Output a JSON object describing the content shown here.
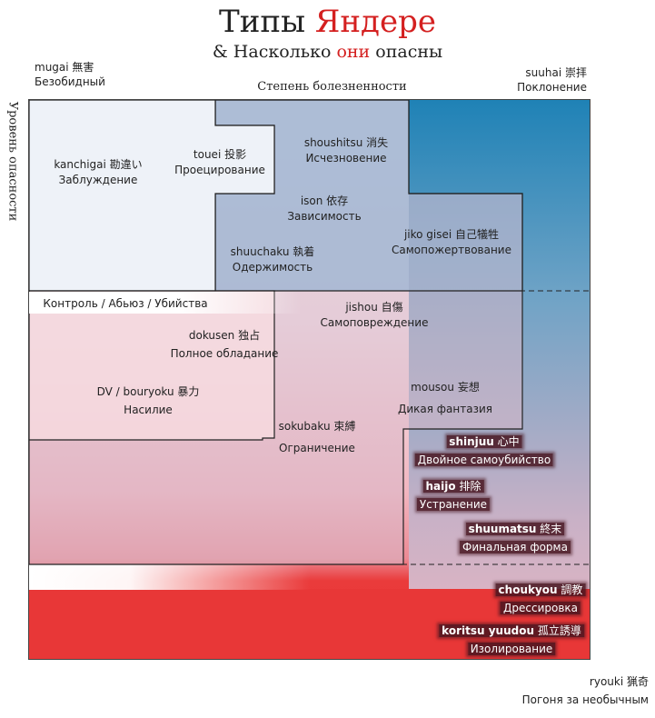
{
  "title": {
    "part1": "Типы",
    "part2": "Яндере"
  },
  "subtitle": {
    "part1": "& Насколько",
    "part2": "они",
    "part3": "опасны"
  },
  "corners": {
    "top_left": {
      "jp": "mugai 無害",
      "ru": "Безобидный"
    },
    "top_right": {
      "jp": "suuhai 崇拝",
      "ru": "Поклонение"
    },
    "bottom_right": {
      "jp": "ryouki 猟奇",
      "ru": "Погоня за необычным"
    }
  },
  "axes": {
    "x_label": "Степень болезненности",
    "y_label": "Уровень опасности"
  },
  "band_label": "Контроль / Абьюз / Убийства",
  "colors": {
    "accent_red": "#d42020",
    "dark_red": "#e83737",
    "blue": "#1e7fb0"
  },
  "types": [
    {
      "jp": "kanchigai 勘違い",
      "ru": "Заблуждение"
    },
    {
      "jp": "touei 投影",
      "ru": "Проецирование"
    },
    {
      "jp": "shoushitsu 消失",
      "ru": "Исчезновение"
    },
    {
      "jp": "ison 依存",
      "ru": "Зависимость"
    },
    {
      "jp": "jiko gisei 自己犠牲",
      "ru": "Самопожертвование"
    },
    {
      "jp": "shuuchaku 執着",
      "ru": "Одержимость"
    },
    {
      "jp": "jishou 自傷",
      "ru": "Самоповреждение"
    },
    {
      "jp": "dokusen 独占",
      "ru": "Полное обладание"
    },
    {
      "jp": "DV / bouryoku 暴力",
      "ru": "Насилие"
    },
    {
      "jp": "mousou 妄想",
      "ru": "Дикая фантазия"
    },
    {
      "jp": "sokubaku 束縛",
      "ru": "Ограничение"
    }
  ],
  "dark_types": [
    {
      "jp": "shinjuu",
      "kanji": "心中",
      "ru": "Двойное самоубийство"
    },
    {
      "jp": "haijo",
      "kanji": "排除",
      "ru": "Устранение"
    },
    {
      "jp": "shuumatsu",
      "kanji": "終末",
      "ru": "Финальная форма"
    },
    {
      "jp": "choukyou",
      "kanji": "調教",
      "ru": "Дрессировка"
    },
    {
      "jp": "koritsu yuudou",
      "kanji": "孤立誘導",
      "ru": "Изолирование"
    }
  ]
}
